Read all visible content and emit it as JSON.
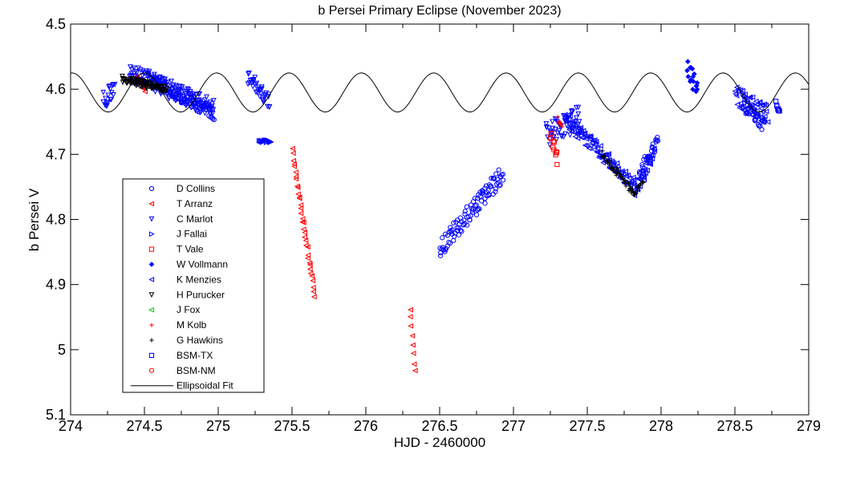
{
  "chart_data": {
    "type": "scatter",
    "title": "b Persei Primary Eclipse (November 2023)",
    "xlabel": "HJD - 2460000",
    "ylabel": "b Persei V",
    "xlim": [
      274,
      279
    ],
    "ylim": [
      4.5,
      5.1
    ],
    "y_reversed": true,
    "grid": false,
    "legend_position": "left",
    "x_ticks": [
      "274",
      "274.5",
      "275",
      "275.5",
      "276",
      "276.5",
      "277",
      "277.5",
      "278",
      "278.5",
      "279"
    ],
    "x_tick_values": [
      274,
      274.5,
      275,
      275.5,
      276,
      276.5,
      277,
      277.5,
      278,
      278.5,
      279
    ],
    "y_ticks": [
      "4.5",
      "4.6",
      "4.7",
      "4.8",
      "4.9",
      "5",
      "5.1"
    ],
    "y_tick_values": [
      4.5,
      4.6,
      4.7,
      4.8,
      4.9,
      5.0,
      5.1
    ],
    "series": [
      {
        "name": "D Collins",
        "color": "#0000ff",
        "marker": "circle",
        "segments": [
          [
            274.5,
            4.58,
            274.97,
            4.635,
            0.012
          ],
          [
            276.5,
            4.845,
            276.93,
            4.73,
            0.015
          ],
          [
            277.85,
            4.73,
            277.98,
            4.68,
            0.01
          ],
          [
            278.55,
            4.62,
            278.7,
            4.655,
            0.012
          ]
        ]
      },
      {
        "name": "T Arranz",
        "color": "#ff0000",
        "marker": "triangle-left",
        "segments": [
          [
            274.44,
            4.58,
            274.5,
            4.6,
            0.004
          ],
          [
            275.5,
            4.695,
            275.65,
            4.915,
            0.004
          ],
          [
            276.3,
            4.94,
            276.33,
            5.035,
            0.005
          ]
        ]
      },
      {
        "name": "C Marlot",
        "color": "#0000ff",
        "marker": "triangle-down",
        "segments": [
          [
            274.22,
            4.62,
            274.3,
            4.6,
            0.015
          ],
          [
            274.4,
            4.575,
            274.97,
            4.63,
            0.015
          ],
          [
            275.2,
            4.58,
            275.35,
            4.62,
            0.012
          ],
          [
            277.22,
            4.67,
            277.45,
            4.645,
            0.02
          ]
        ]
      },
      {
        "name": "J Fallai",
        "color": "#0000ff",
        "marker": "triangle-right",
        "segments": [
          [
            275.28,
            4.68,
            275.36,
            4.68,
            0.002
          ]
        ]
      },
      {
        "name": "T Vale",
        "color": "#ff0000",
        "marker": "square",
        "segments": [
          [
            277.25,
            4.67,
            277.3,
            4.71,
            0.01
          ]
        ]
      },
      {
        "name": "W Vollmann",
        "color": "#0000ff",
        "marker": "diamond",
        "segments": [
          [
            278.18,
            4.57,
            278.25,
            4.6,
            0.015
          ]
        ]
      },
      {
        "name": "K Menzies",
        "color": "#0000ff",
        "marker": "triangle-left",
        "segments": [
          [
            277.35,
            4.645,
            277.82,
            4.75,
            0.012
          ],
          [
            277.82,
            4.76,
            277.95,
            4.7,
            0.01
          ],
          [
            278.5,
            4.61,
            278.72,
            4.64,
            0.015
          ]
        ]
      },
      {
        "name": "H Purucker",
        "color": "#000000",
        "marker": "triangle-down",
        "segments": [
          [
            274.35,
            4.585,
            274.65,
            4.6,
            0.005
          ]
        ]
      },
      {
        "name": "J Fox",
        "color": "#00cc00",
        "marker": "triangle-left",
        "segments": []
      },
      {
        "name": "M Kolb",
        "color": "#ff0000",
        "marker": "plus",
        "segments": [
          [
            277.3,
            4.645,
            277.33,
            4.655,
            0.005
          ]
        ]
      },
      {
        "name": "G Hawkins",
        "color": "#000000",
        "marker": "plus",
        "segments": [
          [
            277.6,
            4.7,
            277.82,
            4.76,
            0.006
          ],
          [
            277.82,
            4.76,
            277.88,
            4.74,
            0.005
          ]
        ]
      },
      {
        "name": "BSM-TX",
        "color": "#0000ff",
        "marker": "square",
        "segments": [
          [
            278.78,
            4.62,
            278.8,
            4.635,
            0.005
          ]
        ]
      },
      {
        "name": "BSM-NM",
        "color": "#ff0000",
        "marker": "circle",
        "segments": []
      }
    ],
    "fit": {
      "name": "Ellipsoidal Fit",
      "color": "#000000",
      "mean": 4.605,
      "amplitude": 0.03,
      "period": 0.98,
      "phase_x": 274.5,
      "trend": -0.002
    }
  }
}
